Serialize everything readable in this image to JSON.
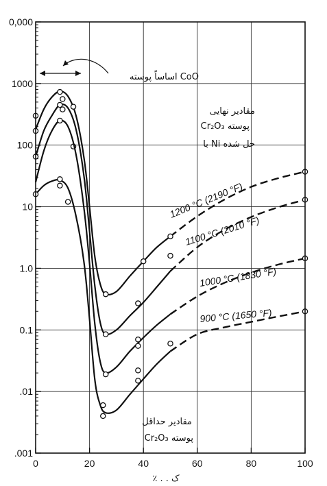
{
  "chart_data": {
    "type": "line",
    "xlabel": "٪ . . ک",
    "ylabel": "",
    "x_ticks": [
      "0",
      "20",
      "40",
      "60",
      "80",
      "100"
    ],
    "y_ticks": [
      "0,000",
      "1000",
      "100",
      "10",
      "1.0",
      "0.1",
      ".01",
      ".001"
    ],
    "xlim": [
      0,
      100
    ],
    "ylim": [
      0.001,
      10000
    ],
    "y_scale": "log",
    "grid": true,
    "annotations": {
      "cao_region": "اساساً پوسته CoO",
      "max_line1": "مقادیر نهایی",
      "max_line2": "Cr₂O₃ پوسته",
      "max_line3": "با Ni حل شده",
      "min_line1": "مقادیر حداقل",
      "min_line2": "Cr₂O₃ پوسته"
    },
    "series": [
      {
        "name": "1200 °C (2190 °F)",
        "curve": [
          [
            0,
            180
          ],
          [
            3,
            380
          ],
          [
            6,
            600
          ],
          [
            9,
            750
          ],
          [
            12,
            620
          ],
          [
            15,
            300
          ],
          [
            18,
            60
          ],
          [
            20,
            10
          ],
          [
            22,
            1.5
          ],
          [
            24,
            0.55
          ],
          [
            26,
            0.38
          ],
          [
            30,
            0.42
          ],
          [
            35,
            0.75
          ],
          [
            40,
            1.3
          ],
          [
            45,
            2.2
          ],
          [
            50,
            3.3
          ]
        ],
        "dashed": [
          [
            50,
            3.3
          ],
          [
            60,
            7
          ],
          [
            70,
            13
          ],
          [
            80,
            21
          ],
          [
            90,
            29
          ],
          [
            100,
            37
          ]
        ],
        "points": [
          [
            0,
            170
          ],
          [
            0,
            300
          ],
          [
            9,
            730
          ],
          [
            10,
            560
          ],
          [
            14,
            420
          ],
          [
            26,
            0.38
          ],
          [
            40,
            1.3
          ],
          [
            50,
            3.3
          ],
          [
            100,
            37
          ]
        ]
      },
      {
        "name": "1100 °C (2010 °F)",
        "curve": [
          [
            0,
            65
          ],
          [
            3,
            170
          ],
          [
            6,
            300
          ],
          [
            9,
            450
          ],
          [
            12,
            400
          ],
          [
            15,
            180
          ],
          [
            18,
            30
          ],
          [
            20,
            4
          ],
          [
            22,
            0.5
          ],
          [
            24,
            0.13
          ],
          [
            26,
            0.085
          ],
          [
            30,
            0.1
          ],
          [
            35,
            0.17
          ],
          [
            40,
            0.28
          ],
          [
            45,
            0.5
          ],
          [
            50,
            0.9
          ]
        ],
        "dashed": [
          [
            50,
            0.9
          ],
          [
            60,
            2.2
          ],
          [
            70,
            4.2
          ],
          [
            80,
            6.8
          ],
          [
            90,
            9.8
          ],
          [
            100,
            13
          ]
        ],
        "points": [
          [
            0,
            65
          ],
          [
            9,
            450
          ],
          [
            10,
            380
          ],
          [
            14,
            95
          ],
          [
            26,
            0.085
          ],
          [
            38,
            0.27
          ],
          [
            50,
            1.6
          ],
          [
            100,
            13
          ]
        ]
      },
      {
        "name": "1000 °C (1830 °F)",
        "curve": [
          [
            0,
            25
          ],
          [
            3,
            80
          ],
          [
            6,
            170
          ],
          [
            9,
            250
          ],
          [
            12,
            200
          ],
          [
            15,
            70
          ],
          [
            18,
            9
          ],
          [
            20,
            1.2
          ],
          [
            22,
            0.12
          ],
          [
            24,
            0.03
          ],
          [
            26,
            0.02
          ],
          [
            30,
            0.025
          ],
          [
            35,
            0.045
          ],
          [
            40,
            0.075
          ],
          [
            45,
            0.12
          ],
          [
            50,
            0.18
          ]
        ],
        "dashed": [
          [
            50,
            0.18
          ],
          [
            60,
            0.35
          ],
          [
            70,
            0.58
          ],
          [
            80,
            0.85
          ],
          [
            90,
            1.15
          ],
          [
            100,
            1.45
          ]
        ],
        "points": [
          [
            9,
            250
          ],
          [
            26,
            0.019
          ],
          [
            38,
            0.07
          ],
          [
            38,
            0.055
          ],
          [
            50,
            0.06
          ],
          [
            100,
            1.45
          ]
        ]
      },
      {
        "name": "900 °C (1650 °F)",
        "curve": [
          [
            0,
            16
          ],
          [
            3,
            22
          ],
          [
            6,
            26
          ],
          [
            9,
            27
          ],
          [
            12,
            20
          ],
          [
            15,
            7
          ],
          [
            18,
            1.2
          ],
          [
            20,
            0.15
          ],
          [
            22,
            0.015
          ],
          [
            24,
            0.006
          ],
          [
            26,
            0.0045
          ],
          [
            30,
            0.005
          ],
          [
            35,
            0.009
          ],
          [
            40,
            0.016
          ],
          [
            45,
            0.028
          ],
          [
            50,
            0.045
          ]
        ],
        "dashed": [
          [
            50,
            0.045
          ],
          [
            60,
            0.085
          ],
          [
            70,
            0.11
          ],
          [
            80,
            0.135
          ],
          [
            90,
            0.165
          ],
          [
            100,
            0.2
          ]
        ],
        "points": [
          [
            0,
            16
          ],
          [
            9,
            28
          ],
          [
            9,
            22
          ],
          [
            12,
            12
          ],
          [
            25,
            0.006
          ],
          [
            25,
            0.004
          ],
          [
            38,
            0.022
          ],
          [
            38,
            0.015
          ],
          [
            100,
            0.2
          ]
        ]
      }
    ]
  }
}
